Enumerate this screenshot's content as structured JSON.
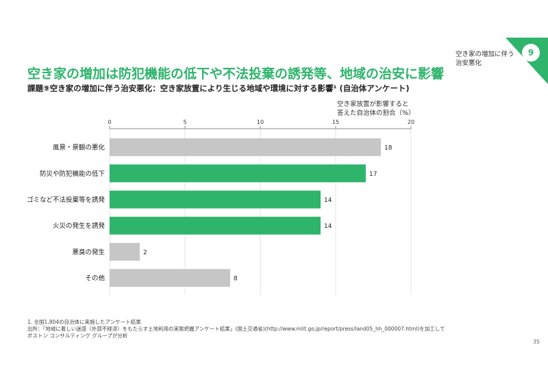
{
  "header": {
    "section_badge": "9",
    "section_label": "空き家の増加に伴う\n治安悪化",
    "title": "空き家の増加は防犯機能の低下や不法投棄の誘発等、地域の治安に影響",
    "subtitle": "課題⑨空き家の増加に伴う治安悪化：空き家放置により生じる地域や環境に対する影響¹ (自治体アンケート)"
  },
  "chart_data": {
    "type": "bar",
    "orientation": "horizontal",
    "title": "",
    "xlabel": "空き家放置が影響すると\n答えた自治体の割合（%）",
    "ylabel": "",
    "xlim": [
      0,
      20
    ],
    "ticks": [
      0,
      5,
      10,
      15,
      20
    ],
    "grid": true,
    "categories": [
      "風景・景観の悪化",
      "防災や防犯機能の低下",
      "ゴミなど不法投棄等を誘発",
      "火災の発生を誘発",
      "悪臭の発生",
      "その他"
    ],
    "values": [
      18,
      17,
      14,
      14,
      2,
      8
    ],
    "highlighted": [
      false,
      true,
      true,
      true,
      false,
      false
    ],
    "colors": {
      "highlight": "#2fb46c",
      "default": "#c6c6c6"
    }
  },
  "footnotes": [
    "1. 全国1,804の自治体に実施したアンケート結果",
    "出所：「地域に着しい迷惑（外部不経済）をもたらす土地利用の実態把握アンケート結果」(国土交通省)(http://www.mlit.go.jp/report/press/land05_hh_000007.html)を加工して",
    "ボストン コンサルティング グループが分析"
  ],
  "page_number": "35"
}
